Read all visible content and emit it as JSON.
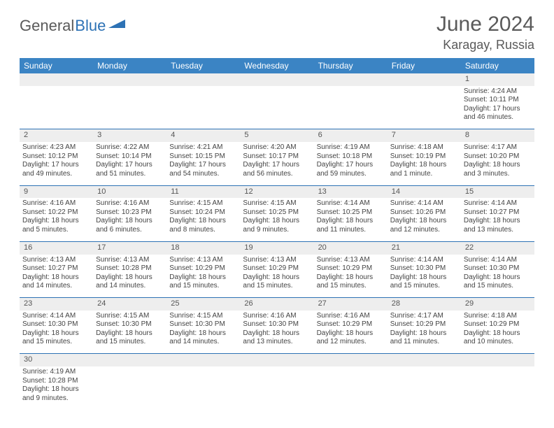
{
  "brand": {
    "part1": "General",
    "part2": "Blue",
    "shape_color": "#2d72b5"
  },
  "title": "June 2024",
  "location": "Karagay, Russia",
  "colors": {
    "header_bg": "#3b84c4",
    "header_text": "#ffffff",
    "daynum_bg": "#eeeeee",
    "row_divider": "#2d72b5",
    "text": "#444444"
  },
  "weekdays": [
    "Sunday",
    "Monday",
    "Tuesday",
    "Wednesday",
    "Thursday",
    "Friday",
    "Saturday"
  ],
  "weeks": [
    [
      null,
      null,
      null,
      null,
      null,
      null,
      {
        "n": "1",
        "sr": "Sunrise: 4:24 AM",
        "ss": "Sunset: 10:11 PM",
        "dl": "Daylight: 17 hours and 46 minutes."
      }
    ],
    [
      {
        "n": "2",
        "sr": "Sunrise: 4:23 AM",
        "ss": "Sunset: 10:12 PM",
        "dl": "Daylight: 17 hours and 49 minutes."
      },
      {
        "n": "3",
        "sr": "Sunrise: 4:22 AM",
        "ss": "Sunset: 10:14 PM",
        "dl": "Daylight: 17 hours and 51 minutes."
      },
      {
        "n": "4",
        "sr": "Sunrise: 4:21 AM",
        "ss": "Sunset: 10:15 PM",
        "dl": "Daylight: 17 hours and 54 minutes."
      },
      {
        "n": "5",
        "sr": "Sunrise: 4:20 AM",
        "ss": "Sunset: 10:17 PM",
        "dl": "Daylight: 17 hours and 56 minutes."
      },
      {
        "n": "6",
        "sr": "Sunrise: 4:19 AM",
        "ss": "Sunset: 10:18 PM",
        "dl": "Daylight: 17 hours and 59 minutes."
      },
      {
        "n": "7",
        "sr": "Sunrise: 4:18 AM",
        "ss": "Sunset: 10:19 PM",
        "dl": "Daylight: 18 hours and 1 minute."
      },
      {
        "n": "8",
        "sr": "Sunrise: 4:17 AM",
        "ss": "Sunset: 10:20 PM",
        "dl": "Daylight: 18 hours and 3 minutes."
      }
    ],
    [
      {
        "n": "9",
        "sr": "Sunrise: 4:16 AM",
        "ss": "Sunset: 10:22 PM",
        "dl": "Daylight: 18 hours and 5 minutes."
      },
      {
        "n": "10",
        "sr": "Sunrise: 4:16 AM",
        "ss": "Sunset: 10:23 PM",
        "dl": "Daylight: 18 hours and 6 minutes."
      },
      {
        "n": "11",
        "sr": "Sunrise: 4:15 AM",
        "ss": "Sunset: 10:24 PM",
        "dl": "Daylight: 18 hours and 8 minutes."
      },
      {
        "n": "12",
        "sr": "Sunrise: 4:15 AM",
        "ss": "Sunset: 10:25 PM",
        "dl": "Daylight: 18 hours and 9 minutes."
      },
      {
        "n": "13",
        "sr": "Sunrise: 4:14 AM",
        "ss": "Sunset: 10:25 PM",
        "dl": "Daylight: 18 hours and 11 minutes."
      },
      {
        "n": "14",
        "sr": "Sunrise: 4:14 AM",
        "ss": "Sunset: 10:26 PM",
        "dl": "Daylight: 18 hours and 12 minutes."
      },
      {
        "n": "15",
        "sr": "Sunrise: 4:14 AM",
        "ss": "Sunset: 10:27 PM",
        "dl": "Daylight: 18 hours and 13 minutes."
      }
    ],
    [
      {
        "n": "16",
        "sr": "Sunrise: 4:13 AM",
        "ss": "Sunset: 10:27 PM",
        "dl": "Daylight: 18 hours and 14 minutes."
      },
      {
        "n": "17",
        "sr": "Sunrise: 4:13 AM",
        "ss": "Sunset: 10:28 PM",
        "dl": "Daylight: 18 hours and 14 minutes."
      },
      {
        "n": "18",
        "sr": "Sunrise: 4:13 AM",
        "ss": "Sunset: 10:29 PM",
        "dl": "Daylight: 18 hours and 15 minutes."
      },
      {
        "n": "19",
        "sr": "Sunrise: 4:13 AM",
        "ss": "Sunset: 10:29 PM",
        "dl": "Daylight: 18 hours and 15 minutes."
      },
      {
        "n": "20",
        "sr": "Sunrise: 4:13 AM",
        "ss": "Sunset: 10:29 PM",
        "dl": "Daylight: 18 hours and 15 minutes."
      },
      {
        "n": "21",
        "sr": "Sunrise: 4:14 AM",
        "ss": "Sunset: 10:30 PM",
        "dl": "Daylight: 18 hours and 15 minutes."
      },
      {
        "n": "22",
        "sr": "Sunrise: 4:14 AM",
        "ss": "Sunset: 10:30 PM",
        "dl": "Daylight: 18 hours and 15 minutes."
      }
    ],
    [
      {
        "n": "23",
        "sr": "Sunrise: 4:14 AM",
        "ss": "Sunset: 10:30 PM",
        "dl": "Daylight: 18 hours and 15 minutes."
      },
      {
        "n": "24",
        "sr": "Sunrise: 4:15 AM",
        "ss": "Sunset: 10:30 PM",
        "dl": "Daylight: 18 hours and 15 minutes."
      },
      {
        "n": "25",
        "sr": "Sunrise: 4:15 AM",
        "ss": "Sunset: 10:30 PM",
        "dl": "Daylight: 18 hours and 14 minutes."
      },
      {
        "n": "26",
        "sr": "Sunrise: 4:16 AM",
        "ss": "Sunset: 10:30 PM",
        "dl": "Daylight: 18 hours and 13 minutes."
      },
      {
        "n": "27",
        "sr": "Sunrise: 4:16 AM",
        "ss": "Sunset: 10:29 PM",
        "dl": "Daylight: 18 hours and 12 minutes."
      },
      {
        "n": "28",
        "sr": "Sunrise: 4:17 AM",
        "ss": "Sunset: 10:29 PM",
        "dl": "Daylight: 18 hours and 11 minutes."
      },
      {
        "n": "29",
        "sr": "Sunrise: 4:18 AM",
        "ss": "Sunset: 10:29 PM",
        "dl": "Daylight: 18 hours and 10 minutes."
      }
    ],
    [
      {
        "n": "30",
        "sr": "Sunrise: 4:19 AM",
        "ss": "Sunset: 10:28 PM",
        "dl": "Daylight: 18 hours and 9 minutes."
      },
      null,
      null,
      null,
      null,
      null,
      null
    ]
  ]
}
